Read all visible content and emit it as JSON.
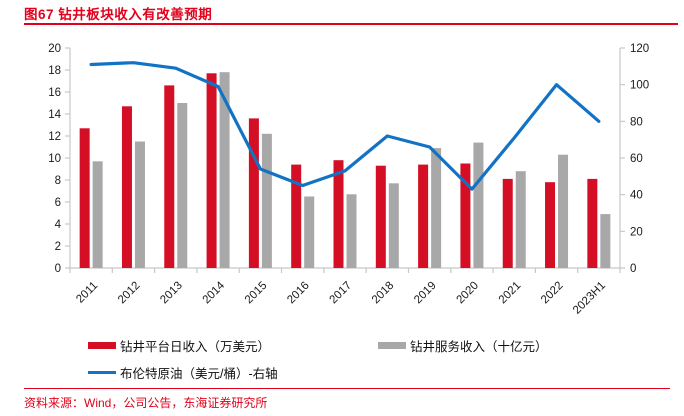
{
  "figure": {
    "title": "图67  钻井板块收入有改善预期",
    "source_note": "资料来源：Wind，公司公告，东海证券研究所"
  },
  "colors": {
    "accent_red": "#e3001b",
    "bar_red": "#d40e24",
    "bar_gray": "#a8a8a8",
    "line_blue": "#1273c4",
    "axis_gray": "#c8c8c8",
    "tick_text": "#1a1a1a"
  },
  "chart_data": {
    "type": "combo-bar-line",
    "title": "钻井板块收入有改善预期",
    "categories": [
      "2011",
      "2012",
      "2013",
      "2014",
      "2015",
      "2016",
      "2017",
      "2018",
      "2019",
      "2020",
      "2021",
      "2022",
      "2023H1"
    ],
    "series": [
      {
        "name": "钻井平台日收入（万美元）",
        "type": "bar",
        "axis": "left",
        "color_key": "bar_red",
        "values": [
          12.7,
          14.7,
          16.6,
          17.7,
          13.6,
          9.4,
          9.8,
          9.3,
          9.4,
          9.5,
          8.1,
          7.8,
          8.1
        ]
      },
      {
        "name": "钻井服务收入（十亿元）",
        "type": "bar",
        "axis": "left",
        "color_key": "bar_gray",
        "values": [
          9.7,
          11.5,
          15.0,
          17.8,
          12.2,
          6.5,
          6.7,
          7.7,
          10.9,
          11.4,
          8.8,
          10.3,
          4.9
        ]
      },
      {
        "name": "布伦特原油（美元/桶）-右轴",
        "type": "line",
        "axis": "right",
        "color_key": "line_blue",
        "values": [
          111,
          112,
          109,
          99,
          54,
          45,
          53,
          72,
          66,
          43,
          71,
          100,
          80
        ]
      }
    ],
    "left_axis": {
      "min": 0,
      "max": 20,
      "step": 2
    },
    "right_axis": {
      "min": 0,
      "max": 120,
      "step": 20
    },
    "grid": false,
    "legend_position": "bottom"
  }
}
